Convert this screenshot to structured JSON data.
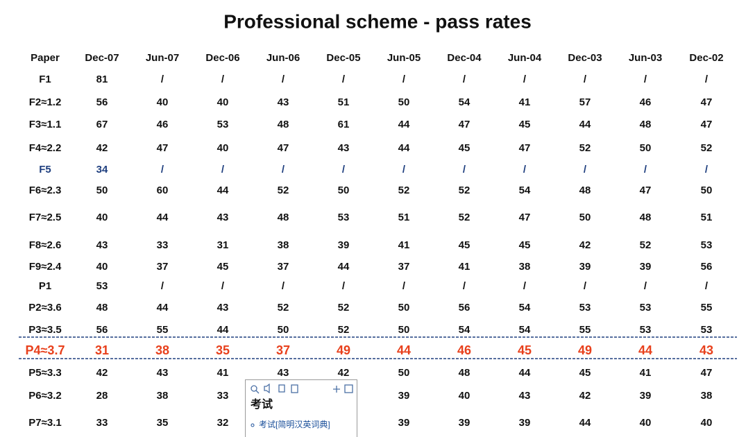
{
  "title": "Professional scheme - pass rates",
  "table": {
    "header": [
      "Paper",
      "Dec-07",
      "Jun-07",
      "Dec-06",
      "Jun-06",
      "Dec-05",
      "Jun-05",
      "Dec-04",
      "Jun-04",
      "Dec-03",
      "Jun-03",
      "Dec-02"
    ],
    "rows": [
      [
        "F1",
        "81",
        "/",
        "/",
        "/",
        "/",
        "/",
        "/",
        "/",
        "/",
        "/",
        "/"
      ],
      [
        "F2≈1.2",
        "56",
        "40",
        "40",
        "43",
        "51",
        "50",
        "54",
        "41",
        "57",
        "46",
        "47"
      ],
      [
        "F3≈1.1",
        "67",
        "46",
        "53",
        "48",
        "61",
        "44",
        "47",
        "45",
        "44",
        "48",
        "47"
      ],
      [
        "F4≈2.2",
        "42",
        "47",
        "40",
        "47",
        "43",
        "44",
        "45",
        "47",
        "52",
        "50",
        "52"
      ],
      [
        "F5",
        "34",
        "/",
        "/",
        "/",
        "/",
        "/",
        "/",
        "/",
        "/",
        "/",
        "/"
      ],
      [
        "F6≈2.3",
        "50",
        "60",
        "44",
        "52",
        "50",
        "52",
        "52",
        "54",
        "48",
        "47",
        "50"
      ],
      [
        "F7≈2.5",
        "40",
        "44",
        "43",
        "48",
        "53",
        "51",
        "52",
        "47",
        "50",
        "48",
        "51"
      ],
      [
        "F8≈2.6",
        "43",
        "33",
        "31",
        "38",
        "39",
        "41",
        "45",
        "45",
        "42",
        "52",
        "53"
      ],
      [
        "F9≈2.4",
        "40",
        "37",
        "45",
        "37",
        "44",
        "37",
        "41",
        "38",
        "39",
        "39",
        "56"
      ],
      [
        "P1",
        "53",
        "/",
        "/",
        "/",
        "/",
        "/",
        "/",
        "/",
        "/",
        "/",
        "/"
      ],
      [
        "P2≈3.6",
        "48",
        "44",
        "43",
        "52",
        "52",
        "50",
        "56",
        "54",
        "53",
        "53",
        "55"
      ],
      [
        "P3≈3.5",
        "56",
        "55",
        "44",
        "50",
        "52",
        "50",
        "54",
        "54",
        "55",
        "53",
        "53"
      ],
      [
        "P4≈3.7",
        "31",
        "38",
        "35",
        "37",
        "49",
        "44",
        "46",
        "45",
        "49",
        "44",
        "43"
      ],
      [
        "P5≈3.3",
        "42",
        "43",
        "41",
        "43",
        "42",
        "50",
        "48",
        "44",
        "45",
        "41",
        "47"
      ],
      [
        "P6≈3.2",
        "28",
        "38",
        "33",
        null,
        null,
        "39",
        "40",
        "43",
        "42",
        "39",
        "38"
      ],
      [
        "P7≈3.1",
        "33",
        "35",
        "32",
        null,
        null,
        "39",
        "39",
        "39",
        "44",
        "40",
        "40"
      ]
    ]
  },
  "popup": {
    "heading": "考试",
    "entry": "考试[简明汉英词典]"
  }
}
